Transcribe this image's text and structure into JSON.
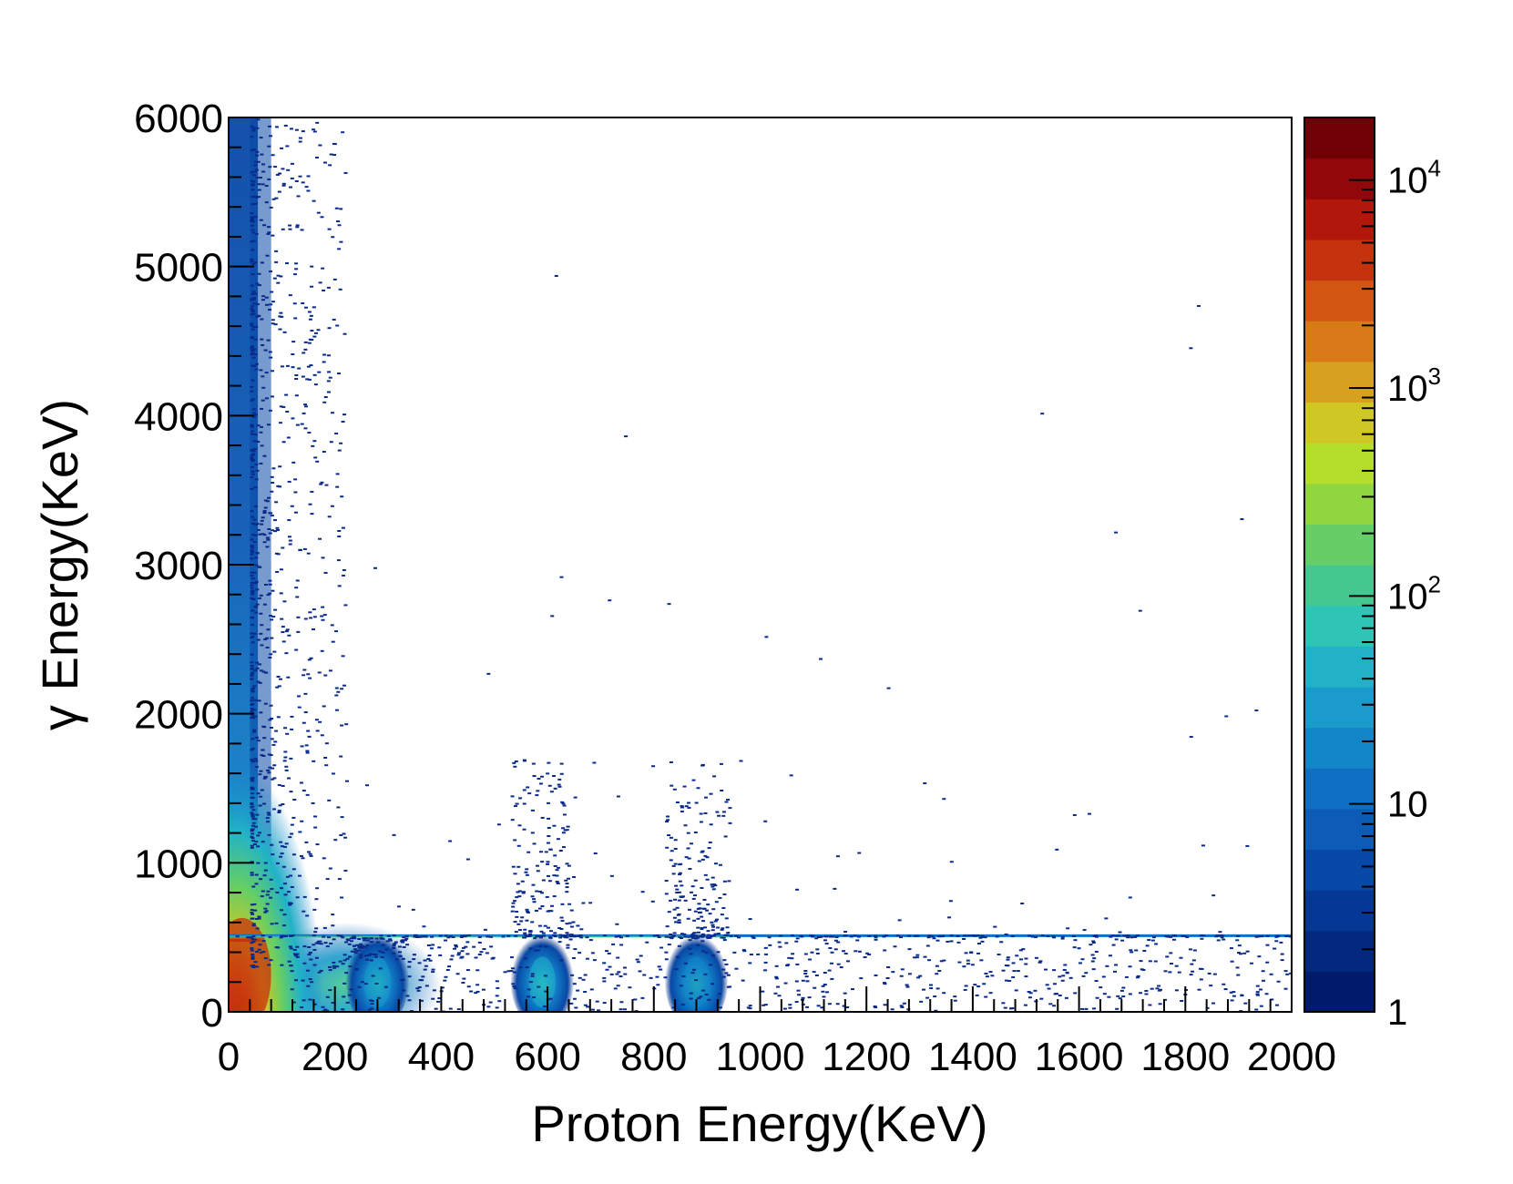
{
  "chart_data": {
    "type": "heatmap",
    "xlabel": "Proton Energy(KeV)",
    "ylabel": "γ Energy(KeV)",
    "xlim": [
      0,
      2000
    ],
    "ylim": [
      0,
      6000
    ],
    "x_ticks": [
      "0",
      "200",
      "400",
      "600",
      "800",
      "1000",
      "1200",
      "1400",
      "1600",
      "1800",
      "2000"
    ],
    "y_ticks": [
      "0",
      "1000",
      "2000",
      "3000",
      "4000",
      "5000",
      "6000"
    ],
    "color_scale": {
      "type": "log",
      "range": [
        1,
        20000
      ],
      "labels": [
        {
          "value": 1,
          "base": "1",
          "exp": ""
        },
        {
          "value": 10,
          "base": "10",
          "exp": ""
        },
        {
          "value": 100,
          "base": "10",
          "exp": "2"
        },
        {
          "value": 1000,
          "base": "10",
          "exp": "3"
        },
        {
          "value": 10000,
          "base": "10",
          "exp": "4"
        }
      ],
      "palette": [
        "#001a6b",
        "#02287f",
        "#053895",
        "#0848a6",
        "#0c5bb5",
        "#0f6fc3",
        "#1385c9",
        "#1a9bcb",
        "#21b2c8",
        "#2ec4b6",
        "#44c88f",
        "#65ce66",
        "#8fd640",
        "#b4dd2c",
        "#cfc824",
        "#d5a11e",
        "#d77a17",
        "#d25512",
        "#c5320e",
        "#b1170b",
        "#92070a",
        "#6e0006"
      ]
    },
    "features": [
      {
        "name": "low-proton band",
        "x_range": [
          0,
          100
        ],
        "y_range": [
          0,
          6000
        ],
        "peak_count": 15000
      },
      {
        "name": "511 keV line",
        "y": 511,
        "x_range": [
          0,
          2000
        ]
      },
      {
        "name": "cluster",
        "x_center": 280,
        "y_max": 500,
        "peak_count": 15
      },
      {
        "name": "cluster",
        "x_center": 590,
        "y_max": 1300,
        "peak_count": 40
      },
      {
        "name": "cluster",
        "x_center": 880,
        "y_max": 1500,
        "peak_count": 40
      }
    ]
  },
  "colors": {
    "axis": "#000000",
    "background": "#ffffff",
    "sparse_point": "#0a2a8a"
  }
}
